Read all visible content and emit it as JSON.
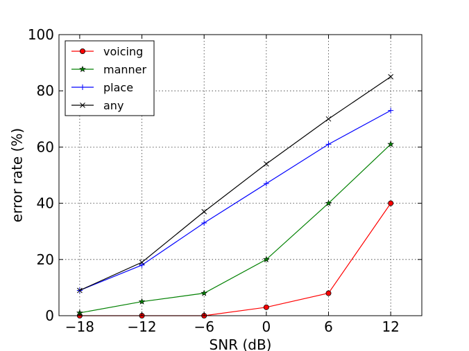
{
  "chart_data": {
    "type": "line",
    "title": "",
    "xlabel": "SNR (dB)",
    "ylabel": "error rate (%)",
    "x": [
      -18,
      -12,
      -6,
      0,
      6,
      12
    ],
    "xlim": [
      -20,
      15
    ],
    "ylim": [
      0,
      100
    ],
    "xticks": [
      "−18",
      "−12",
      "−6",
      "0",
      "6",
      "12"
    ],
    "xtick_values": [
      -18,
      -12,
      -6,
      0,
      6,
      12
    ],
    "yticks": [
      "0",
      "20",
      "40",
      "60",
      "80",
      "100"
    ],
    "ytick_values": [
      0,
      20,
      40,
      60,
      80,
      100
    ],
    "grid": true,
    "legend_position": "top-left",
    "series": [
      {
        "name": "voicing",
        "color": "#ff0000",
        "marker": "circle",
        "values": [
          0,
          0,
          0,
          3,
          8,
          40
        ]
      },
      {
        "name": "manner",
        "color": "#008000",
        "marker": "star",
        "values": [
          1,
          5,
          8,
          20,
          40,
          61
        ]
      },
      {
        "name": "place",
        "color": "#0000ff",
        "marker": "plus",
        "values": [
          9,
          18,
          33,
          47,
          61,
          73
        ]
      },
      {
        "name": "any",
        "color": "#000000",
        "marker": "x",
        "values": [
          9,
          19,
          37,
          54,
          70,
          85
        ]
      }
    ]
  }
}
